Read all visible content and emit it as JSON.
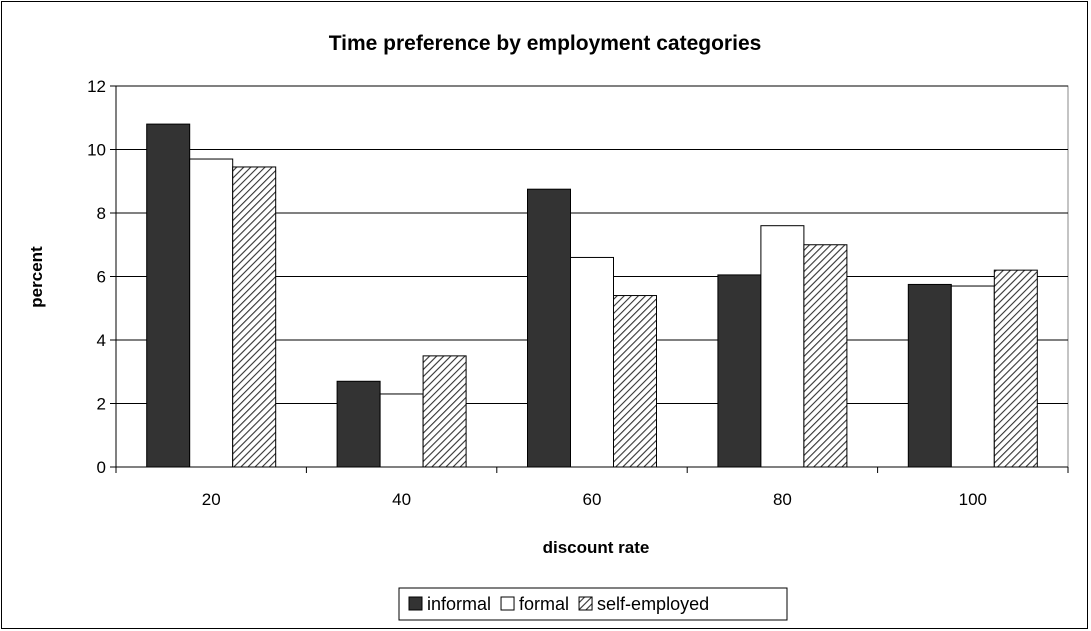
{
  "chart_data": {
    "type": "bar",
    "title": "Time preference by employment categories",
    "xlabel": "discount rate",
    "ylabel": "percent",
    "categories": [
      "20",
      "40",
      "60",
      "80",
      "100"
    ],
    "ylim": [
      0,
      12
    ],
    "yticks": [
      "0",
      "2",
      "4",
      "6",
      "8",
      "10",
      "12"
    ],
    "grid": true,
    "legend_position": "bottom",
    "series": [
      {
        "name": "informal",
        "values": [
          10.8,
          2.7,
          8.75,
          6.05,
          5.75
        ],
        "color": "#333333",
        "pattern": "solid"
      },
      {
        "name": "formal",
        "values": [
          9.7,
          2.3,
          6.6,
          7.6,
          5.7
        ],
        "color": "#ffffff",
        "pattern": "solid"
      },
      {
        "name": "self-employed",
        "values": [
          9.45,
          3.5,
          5.4,
          7.0,
          6.2
        ],
        "color": "#ffffff",
        "pattern": "diagonal-hatch"
      }
    ]
  }
}
